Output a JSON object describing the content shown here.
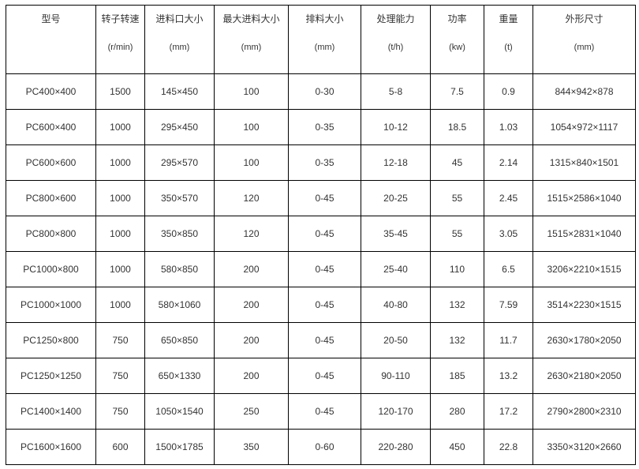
{
  "columns": [
    {
      "name": "型号",
      "unit": ""
    },
    {
      "name": "转子转速",
      "unit": "(r/min)"
    },
    {
      "name": "进料口大小",
      "unit": "(mm)"
    },
    {
      "name": "最大进料大小",
      "unit": "(mm)"
    },
    {
      "name": "排料大小",
      "unit": "(mm)"
    },
    {
      "name": "处理能力",
      "unit": "(t/h)"
    },
    {
      "name": "功率",
      "unit": "(kw)"
    },
    {
      "name": "重量",
      "unit": "(t)"
    },
    {
      "name": "外形尺寸",
      "unit": "(mm)"
    }
  ],
  "rows": [
    [
      "PC400×400",
      "1500",
      "145×450",
      "100",
      "0-30",
      "5-8",
      "7.5",
      "0.9",
      "844×942×878"
    ],
    [
      "PC600×400",
      "1000",
      "295×450",
      "100",
      "0-35",
      "10-12",
      "18.5",
      "1.03",
      "1054×972×1117"
    ],
    [
      "PC600×600",
      "1000",
      "295×570",
      "100",
      "0-35",
      "12-18",
      "45",
      "2.14",
      "1315×840×1501"
    ],
    [
      "PC800×600",
      "1000",
      "350×570",
      "120",
      "0-45",
      "20-25",
      "55",
      "2.45",
      "1515×2586×1040"
    ],
    [
      "PC800×800",
      "1000",
      "350×850",
      "120",
      "0-45",
      "35-45",
      "55",
      "3.05",
      "1515×2831×1040"
    ],
    [
      "PC1000×800",
      "1000",
      "580×850",
      "200",
      "0-45",
      "25-40",
      "110",
      "6.5",
      "3206×2210×1515"
    ],
    [
      "PC1000×1000",
      "1000",
      "580×1060",
      "200",
      "0-45",
      "40-80",
      "132",
      "7.59",
      "3514×2230×1515"
    ],
    [
      "PC1250×800",
      "750",
      "650×850",
      "200",
      "0-45",
      "20-50",
      "132",
      "11.7",
      "2630×1780×2050"
    ],
    [
      "PC1250×1250",
      "750",
      "650×1330",
      "200",
      "0-45",
      "90-110",
      "185",
      "13.2",
      "2630×2180×2050"
    ],
    [
      "PC1400×1400",
      "750",
      "1050×1540",
      "250",
      "0-45",
      "120-170",
      "280",
      "17.2",
      "2790×2800×2310"
    ],
    [
      "PC1600×1600",
      "600",
      "1500×1785",
      "350",
      "0-60",
      "220-280",
      "450",
      "22.8",
      "3350×3120×2660"
    ]
  ]
}
